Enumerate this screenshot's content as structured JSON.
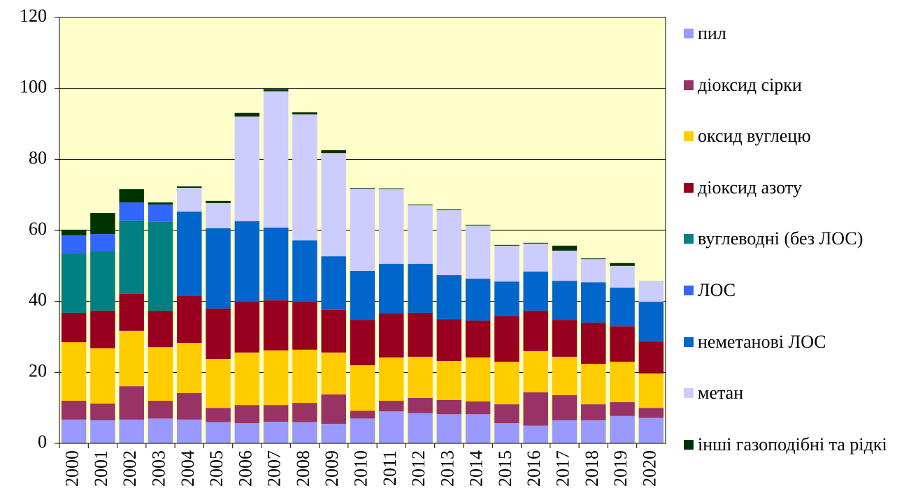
{
  "chart_data": {
    "type": "stacked_bar",
    "categories": [
      "2000",
      "2001",
      "2002",
      "2003",
      "2004",
      "2005",
      "2006",
      "2007",
      "2008",
      "2009",
      "2010",
      "2011",
      "2012",
      "2013",
      "2014",
      "2015",
      "2016",
      "2017",
      "2018",
      "2019",
      "2020"
    ],
    "series": [
      {
        "name": "пил",
        "color": "#9999ff",
        "values": [
          6.7,
          6.5,
          6.7,
          7.0,
          6.7,
          6.0,
          5.7,
          6.1,
          6.0,
          5.5,
          7.0,
          9.0,
          8.5,
          8.2,
          8.2,
          5.7,
          5.0,
          6.5,
          6.5,
          7.7,
          7.2
        ]
      },
      {
        "name": "діоксид сірки",
        "color": "#993366",
        "values": [
          5.3,
          4.7,
          9.4,
          5.0,
          7.5,
          4.0,
          5.1,
          4.7,
          5.4,
          8.3,
          2.2,
          3.0,
          4.3,
          4.0,
          3.6,
          5.3,
          9.4,
          7.1,
          4.5,
          3.9,
          2.8
        ]
      },
      {
        "name": "оксид вуглецю",
        "color": "#ffcc00",
        "values": [
          16.5,
          15.6,
          15.6,
          15.1,
          14.1,
          13.8,
          14.8,
          15.4,
          15.0,
          11.8,
          12.8,
          12.2,
          11.6,
          11.0,
          12.4,
          12.0,
          11.6,
          10.8,
          11.4,
          11.4,
          9.7
        ]
      },
      {
        "name": "діоксид азоту",
        "color": "#99001f",
        "values": [
          8.3,
          10.6,
          10.4,
          10.3,
          13.2,
          14.2,
          14.3,
          14.1,
          13.5,
          12.0,
          12.8,
          12.4,
          12.4,
          11.8,
          10.4,
          12.8,
          11.4,
          10.4,
          11.6,
          10.0,
          9.0
        ]
      },
      {
        "name": "вуглеводні (без ЛОС)",
        "color": "#008080",
        "values": [
          16.7,
          16.7,
          20.7,
          25.0,
          0,
          0,
          0,
          0,
          0,
          0,
          0,
          0,
          0,
          0,
          0,
          0,
          0,
          0,
          0,
          0,
          0
        ]
      },
      {
        "name": "ЛОС",
        "color": "#3366ff",
        "values": [
          5.1,
          4.9,
          5.1,
          4.9,
          0,
          0,
          0,
          0,
          0,
          0,
          0,
          0,
          0,
          0,
          0,
          0,
          0,
          0,
          0,
          0,
          0
        ]
      },
      {
        "name": "неметанові ЛОС",
        "color": "#0066cc",
        "values": [
          0,
          0,
          0,
          0,
          23.8,
          22.6,
          22.7,
          20.5,
          17.3,
          15.1,
          13.8,
          14.0,
          13.8,
          12.4,
          11.8,
          9.8,
          11.0,
          11.0,
          11.4,
          10.9,
          11.2
        ]
      },
      {
        "name": "метан",
        "color": "#ccccff",
        "values": [
          0,
          0,
          0,
          0,
          6.7,
          7.1,
          29.5,
          38.4,
          35.5,
          29.1,
          23.2,
          21.0,
          16.5,
          18.3,
          15.0,
          10.1,
          7.9,
          8.5,
          6.5,
          6.1,
          5.9
        ]
      },
      {
        "name": "інші газоподібні та рідкі",
        "color": "#003300",
        "values": [
          1.6,
          5.9,
          3.7,
          0.6,
          0.4,
          0.6,
          1.0,
          0.6,
          0.6,
          0.8,
          0.2,
          0.2,
          0.2,
          0.2,
          0.2,
          0.2,
          0.2,
          1.4,
          0.2,
          0.8,
          0
        ]
      }
    ],
    "ylim": [
      0,
      120
    ],
    "yticks": [
      0,
      20,
      40,
      60,
      80,
      100,
      120
    ],
    "grid": true,
    "legend": "right"
  }
}
